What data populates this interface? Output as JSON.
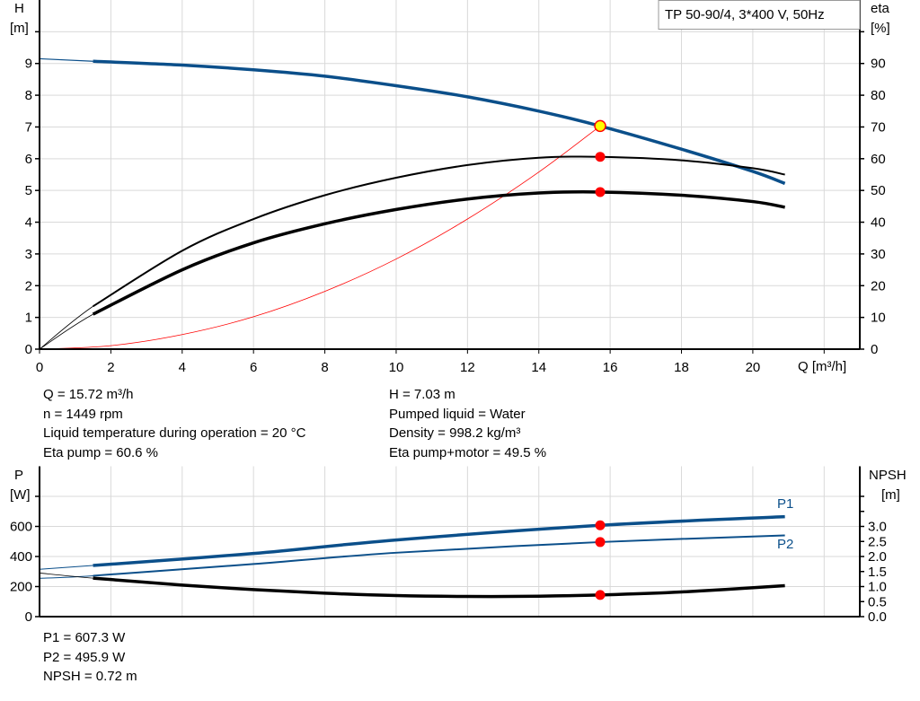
{
  "title_box": "TP 50-90/4, 3*400 V, 50Hz",
  "colors": {
    "head": "#0b4f8a",
    "efficiency": "#000000",
    "system_curve": "#ff0000",
    "marker": "#ff0000",
    "duty_point": "#ffff00",
    "grid": "#d9d9d9"
  },
  "chart_data": [
    {
      "type": "line",
      "x_axis": {
        "label": "Q [m³/h]",
        "range": [
          0,
          23
        ],
        "ticks": [
          "0",
          "2",
          "4",
          "6",
          "8",
          "10",
          "12",
          "14",
          "16",
          "18",
          "20"
        ]
      },
      "y_left": {
        "label": "H",
        "unit": "[m]",
        "range": [
          0,
          11
        ],
        "ticks": [
          "0",
          "1",
          "2",
          "3",
          "4",
          "5",
          "6",
          "7",
          "8",
          "9"
        ]
      },
      "y_right": {
        "label": "eta",
        "unit": "[%]",
        "range": [
          0,
          110
        ],
        "ticks": [
          "0",
          "10",
          "20",
          "30",
          "40",
          "50",
          "60",
          "70",
          "80",
          "90"
        ]
      },
      "grid": true,
      "series": [
        {
          "id": "H",
          "axis": "left",
          "x": [
            1.5,
            4,
            6,
            8,
            10,
            12,
            14,
            15.72,
            18,
            20,
            20.9
          ],
          "y": [
            9.07,
            8.95,
            8.8,
            8.6,
            8.3,
            7.95,
            7.5,
            7.03,
            6.3,
            5.6,
            5.22
          ],
          "extrapolated_start": [
            0,
            9.15
          ]
        },
        {
          "id": "eta_pump",
          "axis": "right",
          "x": [
            1.5,
            4,
            6,
            8,
            10,
            12,
            14,
            15.72,
            18,
            20,
            20.9
          ],
          "y": [
            13.5,
            31,
            41,
            48.5,
            54,
            58,
            60.3,
            60.6,
            59.5,
            57,
            55
          ],
          "extrapolated_start": [
            0,
            0
          ]
        },
        {
          "id": "eta_pump_motor",
          "axis": "right",
          "x": [
            1.5,
            4,
            6,
            8,
            10,
            12,
            14,
            15.72,
            18,
            20,
            20.9
          ],
          "y": [
            11,
            25,
            33.5,
            39.5,
            44,
            47.3,
            49.2,
            49.5,
            48.5,
            46.5,
            44.7
          ],
          "extrapolated_start": [
            0,
            0
          ]
        },
        {
          "id": "system_curve",
          "axis": "left",
          "x": [
            0,
            2,
            4,
            6,
            8,
            10,
            12,
            14,
            15.72
          ],
          "y": [
            0,
            0.11,
            0.46,
            1.02,
            1.82,
            2.84,
            4.1,
            5.58,
            7.03
          ]
        }
      ],
      "duty_point": {
        "Q": 15.72,
        "H": 7.03,
        "eta_pump": 60.6,
        "eta_total": 49.5
      }
    },
    {
      "type": "line",
      "x_axis": {
        "range": [
          0,
          23
        ]
      },
      "y_left": {
        "label": "P",
        "unit": "[W]",
        "range": [
          0,
          1000
        ],
        "ticks": [
          "0",
          "200",
          "400",
          "600"
        ]
      },
      "y_right": {
        "label": "NPSH",
        "unit": "[m]",
        "range": [
          0,
          5
        ],
        "ticks": [
          "0.0",
          "0.5",
          "1.0",
          "1.5",
          "2.0",
          "2.5",
          "3.0"
        ]
      },
      "grid": true,
      "series": [
        {
          "name": "P1",
          "axis": "left",
          "x": [
            1.5,
            6,
            10,
            15.72,
            20.9
          ],
          "y": [
            340,
            420,
            510,
            607.3,
            665
          ],
          "extrapolated_start": [
            0,
            315
          ]
        },
        {
          "name": "P2",
          "axis": "left",
          "x": [
            1.5,
            6,
            10,
            15.72,
            20.9
          ],
          "y": [
            272,
            350,
            425,
            495.9,
            540
          ],
          "extrapolated_start": [
            0,
            255
          ]
        },
        {
          "id": "NPSH",
          "axis": "right",
          "x": [
            1.5,
            4,
            6,
            8,
            10,
            12,
            14,
            15.72,
            18,
            20.9
          ],
          "y": [
            1.28,
            1.05,
            0.9,
            0.78,
            0.7,
            0.67,
            0.68,
            0.72,
            0.82,
            1.03
          ],
          "extrapolated_start": [
            0,
            1.45
          ]
        }
      ],
      "duty_point": {
        "Q": 15.72,
        "P1": 607.3,
        "P2": 495.9,
        "NPSH": 0.72
      }
    }
  ],
  "info_top": {
    "q": "Q = 15.72 m³/h",
    "n": "n = 1449 rpm",
    "temp": "Liquid temperature during operation = 20 °C",
    "eta_pump": "Eta pump = 60.6 %",
    "h": "H = 7.03 m",
    "liquid": "Pumped liquid = Water",
    "density": "Density = 998.2 kg/m³",
    "eta_total": "Eta pump+motor = 49.5 %"
  },
  "info_bottom": {
    "p1": "P1 = 607.3 W",
    "p2": "P2 = 495.9 W",
    "npsh": "NPSH = 0.72 m"
  }
}
